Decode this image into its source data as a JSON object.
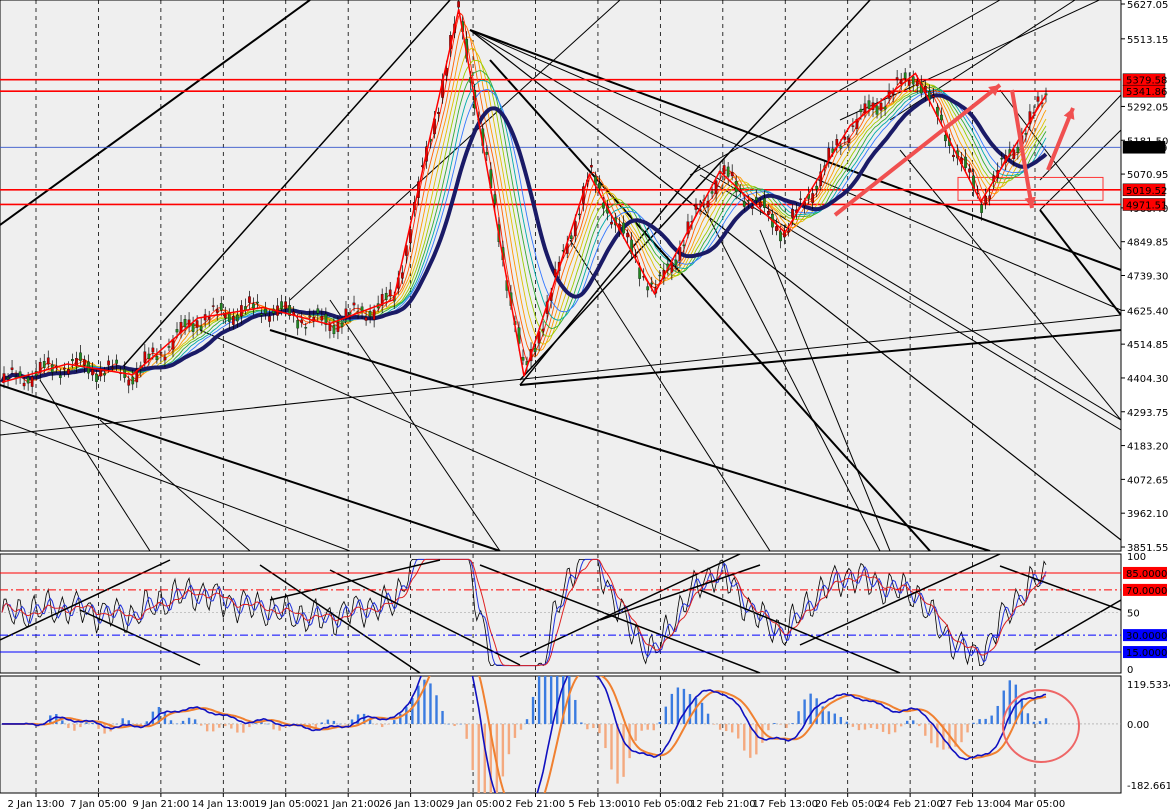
{
  "chart_data": [
    {
      "panel": "price",
      "type": "candlestick",
      "y_ticks": [
        "5627.05",
        "5513.15",
        "5292.05",
        "5181.50",
        "5070.95",
        "4960.40",
        "4849.85",
        "4739.30",
        "4625.40",
        "4514.85",
        "4404.30",
        "4293.75",
        "4183.20",
        "4072.65",
        "3962.10",
        "3851.55"
      ],
      "ylim": [
        3851.55,
        5627.05
      ],
      "price_labels": [
        {
          "text": "5379.58",
          "value": 5379.58,
          "color": "#ff0000"
        },
        {
          "text": "5341.86",
          "value": 5341.86,
          "color": "#ff0000"
        },
        {
          "text": "5158.49",
          "value": 5158.49,
          "color": "#000000"
        },
        {
          "text": "5019.52",
          "value": 5019.52,
          "color": "#ff0000"
        },
        {
          "text": "4971.51",
          "value": 4971.51,
          "color": "#ff0000"
        }
      ],
      "zigzag_pivots": [
        4390,
        4450,
        4415,
        4600,
        4635,
        4580,
        4660,
        5610,
        4410,
        5070,
        4680,
        5080,
        4880,
        5230,
        5400,
        4980,
        5330
      ],
      "trend_series": [
        {
          "name": "ma_long",
          "color": "#1a1a66"
        },
        {
          "name": "ribbon",
          "color": "#ff3300"
        }
      ]
    },
    {
      "panel": "oscillator",
      "type": "line",
      "y_ticks": [
        "100",
        "85.0000",
        "70.0000",
        "50",
        "30.0000",
        "15.0000",
        "0"
      ],
      "ylim": [
        0,
        100
      ],
      "levels": [
        {
          "text": "85.0000",
          "value": 85,
          "color": "#ff0000",
          "style": "solid"
        },
        {
          "text": "70.0000",
          "value": 70,
          "color": "#ff0000",
          "style": "dashdot"
        },
        {
          "text": "30.0000",
          "value": 30,
          "color": "#0000ff",
          "style": "dashdot"
        },
        {
          "text": "15.0000",
          "value": 15,
          "color": "#0000ff",
          "style": "solid"
        }
      ]
    },
    {
      "panel": "macd",
      "type": "bar+line",
      "y_ticks": [
        "119.5334",
        "0.00",
        "-182.6615"
      ],
      "ylim": [
        -182.6615,
        119.5334
      ],
      "colors": {
        "positive": "#3a7be0",
        "negative": "#f4a97f",
        "line": "#1010c0",
        "signal": "#f08030"
      }
    }
  ],
  "x_ticks": [
    "2 Jan 13:00",
    "7 Jan 05:00",
    "9 Jan 21:00",
    "14 Jan 13:00",
    "19 Jan 05:00",
    "21 Jan 21:00",
    "26 Jan 13:00",
    "29 Jan 05:00",
    "2 Feb 21:00",
    "5 Feb 13:00",
    "10 Feb 05:00",
    "12 Feb 21:00",
    "17 Feb 13:00",
    "20 Feb 05:00",
    "24 Feb 21:00",
    "27 Feb 13:00",
    "4 Mar 05:00"
  ]
}
